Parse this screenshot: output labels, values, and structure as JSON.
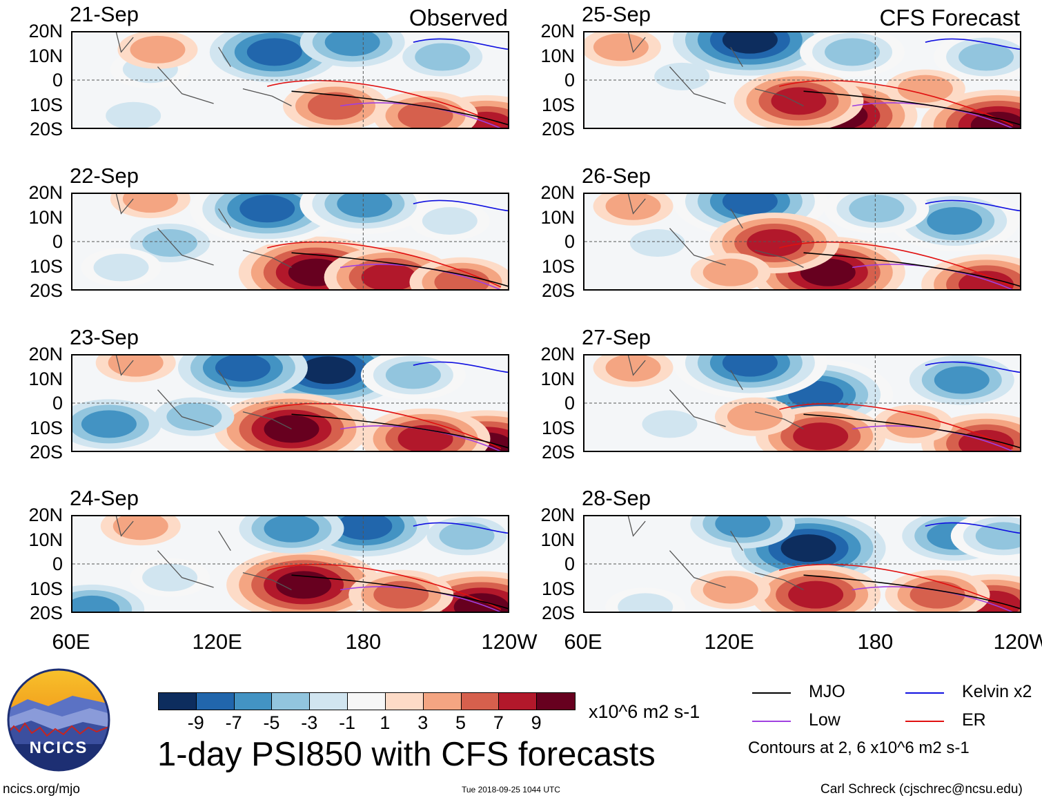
{
  "chart_data": {
    "type": "heatmap",
    "title": "1-day PSI850 with CFS forecasts",
    "column_labels": {
      "left": "Observed",
      "right": "CFS Forecast"
    },
    "yticks": [
      "20N",
      "10N",
      "0",
      "10S",
      "20S"
    ],
    "xticks": [
      "60E",
      "120E",
      "180",
      "120W"
    ],
    "ylim": [
      -20,
      20
    ],
    "xlim": [
      60,
      240
    ],
    "panels": [
      {
        "date": "21-Sep",
        "source": "Observed",
        "blobs": [
          {
            "lon": 143,
            "lat": 12,
            "v": -8
          },
          {
            "lon": 175,
            "lat": 16,
            "v": -6
          },
          {
            "lon": 212,
            "lat": 10,
            "v": -4
          },
          {
            "lon": 95,
            "lat": 13,
            "v": 3
          },
          {
            "lon": 168,
            "lat": -10,
            "v": 6
          },
          {
            "lon": 205,
            "lat": -14,
            "v": 5
          },
          {
            "lon": 230,
            "lat": -18,
            "v": 7
          },
          {
            "lon": 92,
            "lat": 5,
            "v": -3
          },
          {
            "lon": 85,
            "lat": -14,
            "v": -2
          }
        ]
      },
      {
        "date": "22-Sep",
        "source": "Observed",
        "blobs": [
          {
            "lon": 140,
            "lat": 14,
            "v": -9
          },
          {
            "lon": 180,
            "lat": 16,
            "v": -7
          },
          {
            "lon": 215,
            "lat": 9,
            "v": -3
          },
          {
            "lon": 92,
            "lat": 18,
            "v": 4
          },
          {
            "lon": 160,
            "lat": -12,
            "v": 9
          },
          {
            "lon": 190,
            "lat": -14,
            "v": 8
          },
          {
            "lon": 220,
            "lat": -16,
            "v": 6
          },
          {
            "lon": 100,
            "lat": 0,
            "v": -4
          },
          {
            "lon": 80,
            "lat": -10,
            "v": -3
          }
        ]
      },
      {
        "date": "23-Sep",
        "source": "Observed",
        "blobs": [
          {
            "lon": 130,
            "lat": 15,
            "v": -8
          },
          {
            "lon": 165,
            "lat": 14,
            "v": -10
          },
          {
            "lon": 200,
            "lat": 12,
            "v": -5
          },
          {
            "lon": 86,
            "lat": 17,
            "v": 4
          },
          {
            "lon": 150,
            "lat": -10,
            "v": 9
          },
          {
            "lon": 205,
            "lat": -14,
            "v": 8
          },
          {
            "lon": 230,
            "lat": -17,
            "v": 9
          },
          {
            "lon": 75,
            "lat": -8,
            "v": -6
          },
          {
            "lon": 110,
            "lat": -5,
            "v": -4
          }
        ]
      },
      {
        "date": "24-Sep",
        "source": "Observed",
        "blobs": [
          {
            "lon": 150,
            "lat": 15,
            "v": -6
          },
          {
            "lon": 180,
            "lat": 16,
            "v": -8
          },
          {
            "lon": 222,
            "lat": 12,
            "v": -4
          },
          {
            "lon": 88,
            "lat": 16,
            "v": 4
          },
          {
            "lon": 155,
            "lat": -8,
            "v": 9
          },
          {
            "lon": 195,
            "lat": -12,
            "v": 6
          },
          {
            "lon": 228,
            "lat": -17,
            "v": 9
          },
          {
            "lon": 68,
            "lat": -18,
            "v": -6
          },
          {
            "lon": 100,
            "lat": -5,
            "v": -3
          }
        ]
      },
      {
        "date": "25-Sep",
        "source": "CFS Forecast",
        "blobs": [
          {
            "lon": 128,
            "lat": 17,
            "v": -10
          },
          {
            "lon": 170,
            "lat": 12,
            "v": -5
          },
          {
            "lon": 225,
            "lat": 10,
            "v": -5
          },
          {
            "lon": 75,
            "lat": 14,
            "v": 4
          },
          {
            "lon": 148,
            "lat": -8,
            "v": 8
          },
          {
            "lon": 165,
            "lat": -14,
            "v": 10
          },
          {
            "lon": 230,
            "lat": -18,
            "v": 9
          },
          {
            "lon": 100,
            "lat": 2,
            "v": -2
          },
          {
            "lon": 200,
            "lat": -3,
            "v": 3
          }
        ]
      },
      {
        "date": "26-Sep",
        "source": "CFS Forecast",
        "blobs": [
          {
            "lon": 128,
            "lat": 17,
            "v": -9
          },
          {
            "lon": 180,
            "lat": 14,
            "v": -5
          },
          {
            "lon": 212,
            "lat": 9,
            "v": -7
          },
          {
            "lon": 80,
            "lat": 15,
            "v": 4
          },
          {
            "lon": 138,
            "lat": 0,
            "v": 8
          },
          {
            "lon": 160,
            "lat": -12,
            "v": 10
          },
          {
            "lon": 225,
            "lat": -17,
            "v": 8
          },
          {
            "lon": 90,
            "lat": 0,
            "v": -2
          },
          {
            "lon": 120,
            "lat": -12,
            "v": 4
          }
        ]
      },
      {
        "date": "27-Sep",
        "source": "CFS Forecast",
        "blobs": [
          {
            "lon": 128,
            "lat": 17,
            "v": -9
          },
          {
            "lon": 155,
            "lat": 4,
            "v": -9
          },
          {
            "lon": 215,
            "lat": 10,
            "v": -6
          },
          {
            "lon": 80,
            "lat": 15,
            "v": 3
          },
          {
            "lon": 157,
            "lat": -13,
            "v": 8
          },
          {
            "lon": 130,
            "lat": -5,
            "v": 4
          },
          {
            "lon": 225,
            "lat": -16,
            "v": 7
          },
          {
            "lon": 95,
            "lat": -8,
            "v": -2
          },
          {
            "lon": 195,
            "lat": -8,
            "v": 3
          }
        ]
      },
      {
        "date": "28-Sep",
        "source": "CFS Forecast",
        "blobs": [
          {
            "lon": 125,
            "lat": 17,
            "v": -6
          },
          {
            "lon": 152,
            "lat": 7,
            "v": -10
          },
          {
            "lon": 212,
            "lat": 12,
            "v": -6
          },
          {
            "lon": 232,
            "lat": 12,
            "v": -5
          },
          {
            "lon": 155,
            "lat": -12,
            "v": 8
          },
          {
            "lon": 205,
            "lat": -12,
            "v": 5
          },
          {
            "lon": 228,
            "lat": -16,
            "v": 7
          },
          {
            "lon": 85,
            "lat": -17,
            "v": -3
          },
          {
            "lon": 120,
            "lat": -10,
            "v": 3
          }
        ]
      }
    ],
    "colorbar": {
      "levels": [
        -9,
        -7,
        -5,
        -3,
        -1,
        1,
        3,
        5,
        7,
        9
      ],
      "tick_labels": [
        "-9",
        "-7",
        "-5",
        "-3",
        "-1",
        "1",
        "3",
        "5",
        "7",
        "9"
      ],
      "colors": [
        "#0d2d5e",
        "#2166ac",
        "#4393c3",
        "#92c5de",
        "#d1e5f0",
        "#f7f7f7",
        "#fddbc7",
        "#f4a582",
        "#d6604d",
        "#b2182b",
        "#67001f"
      ],
      "units": "x10^6 m2 s-1"
    },
    "contours": {
      "legend": [
        {
          "label": "MJO",
          "color": "#000000"
        },
        {
          "label": "Low",
          "color": "#a040e0"
        },
        {
          "label": "Kelvin x2",
          "color": "#1010e0"
        },
        {
          "label": "ER",
          "color": "#e01010"
        }
      ],
      "note": "Contours at 2, 6 x10^6 m2 s-1"
    }
  },
  "footer": {
    "logo_text": "NCICS",
    "url": "ncics.org/mjo",
    "timestamp": "Tue 2018-09-25 1044 UTC",
    "author": "Carl Schreck (cjschrec@ncsu.edu)"
  }
}
